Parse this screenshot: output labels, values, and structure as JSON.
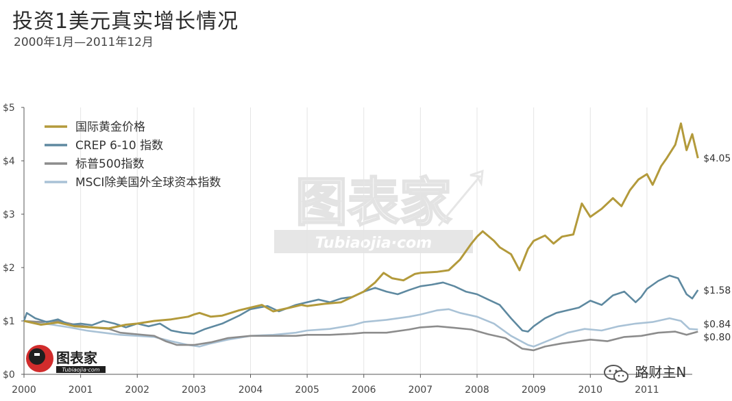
{
  "header": {
    "title": "投资1美元真实增长情况",
    "subtitle": "2000年1月—2011年12月"
  },
  "watermark": {
    "main": "图表家",
    "sub": "Tubiaojia·com",
    "logo_main": "图表家",
    "logo_sub": "Tubiaojia·com"
  },
  "footer": {
    "text": "路财主N",
    "icon": "wechat-icon"
  },
  "chart_data": {
    "type": "line",
    "xlim": [
      2000,
      2011.8
    ],
    "ylim": [
      0,
      5
    ],
    "x_ticks": [
      2000,
      2001,
      2002,
      2003,
      2004,
      2005,
      2006,
      2007,
      2008,
      2009,
      2010,
      2011
    ],
    "x_tick_labels": [
      "2000",
      "2001",
      "2002",
      "2003",
      "2004",
      "2005",
      "2006",
      "2007",
      "2008",
      "2009",
      "2010",
      "2011"
    ],
    "y_ticks": [
      0,
      1,
      2,
      3,
      4,
      5
    ],
    "y_tick_labels": [
      "$0",
      "$1",
      "$2",
      "$3",
      "$4",
      "$5"
    ],
    "grid": "vertical",
    "legend_position": "top-left",
    "series": [
      {
        "name": "国际黄金价格",
        "color": "#b39a3b",
        "end_label": "$4.05",
        "points": [
          [
            2000.0,
            1.0
          ],
          [
            2000.3,
            0.93
          ],
          [
            2000.6,
            0.97
          ],
          [
            2000.9,
            0.9
          ],
          [
            2001.2,
            0.88
          ],
          [
            2001.5,
            0.86
          ],
          [
            2001.8,
            0.93
          ],
          [
            2002.0,
            0.95
          ],
          [
            2002.3,
            1.0
          ],
          [
            2002.6,
            1.03
          ],
          [
            2002.9,
            1.08
          ],
          [
            2003.0,
            1.12
          ],
          [
            2003.1,
            1.15
          ],
          [
            2003.3,
            1.08
          ],
          [
            2003.5,
            1.1
          ],
          [
            2003.8,
            1.2
          ],
          [
            2004.0,
            1.25
          ],
          [
            2004.2,
            1.3
          ],
          [
            2004.4,
            1.18
          ],
          [
            2004.7,
            1.25
          ],
          [
            2004.9,
            1.3
          ],
          [
            2005.0,
            1.28
          ],
          [
            2005.3,
            1.32
          ],
          [
            2005.6,
            1.35
          ],
          [
            2005.9,
            1.5
          ],
          [
            2006.0,
            1.55
          ],
          [
            2006.2,
            1.72
          ],
          [
            2006.35,
            1.9
          ],
          [
            2006.5,
            1.8
          ],
          [
            2006.7,
            1.76
          ],
          [
            2006.9,
            1.88
          ],
          [
            2007.0,
            1.9
          ],
          [
            2007.3,
            1.92
          ],
          [
            2007.5,
            1.95
          ],
          [
            2007.7,
            2.15
          ],
          [
            2007.9,
            2.45
          ],
          [
            2008.0,
            2.58
          ],
          [
            2008.1,
            2.68
          ],
          [
            2008.3,
            2.5
          ],
          [
            2008.4,
            2.38
          ],
          [
            2008.6,
            2.25
          ],
          [
            2008.75,
            1.95
          ],
          [
            2008.9,
            2.35
          ],
          [
            2009.0,
            2.5
          ],
          [
            2009.2,
            2.6
          ],
          [
            2009.35,
            2.45
          ],
          [
            2009.5,
            2.58
          ],
          [
            2009.7,
            2.62
          ],
          [
            2009.85,
            3.2
          ],
          [
            2010.0,
            2.95
          ],
          [
            2010.2,
            3.1
          ],
          [
            2010.4,
            3.3
          ],
          [
            2010.55,
            3.15
          ],
          [
            2010.7,
            3.45
          ],
          [
            2010.85,
            3.65
          ],
          [
            2011.0,
            3.75
          ],
          [
            2011.1,
            3.55
          ],
          [
            2011.25,
            3.9
          ],
          [
            2011.35,
            4.05
          ],
          [
            2011.5,
            4.3
          ],
          [
            2011.6,
            4.7
          ],
          [
            2011.7,
            4.2
          ],
          [
            2011.8,
            4.5
          ],
          [
            2011.9,
            4.05
          ]
        ]
      },
      {
        "name": "CREP 6-10 指数",
        "color": "#5e89a0",
        "end_label": "$1.58",
        "points": [
          [
            2000.0,
            1.0
          ],
          [
            2000.05,
            1.15
          ],
          [
            2000.2,
            1.05
          ],
          [
            2000.4,
            0.98
          ],
          [
            2000.6,
            1.03
          ],
          [
            2000.8,
            0.93
          ],
          [
            2001.0,
            0.95
          ],
          [
            2001.2,
            0.92
          ],
          [
            2001.4,
            1.0
          ],
          [
            2001.6,
            0.95
          ],
          [
            2001.8,
            0.88
          ],
          [
            2002.0,
            0.95
          ],
          [
            2002.2,
            0.9
          ],
          [
            2002.4,
            0.95
          ],
          [
            2002.6,
            0.82
          ],
          [
            2002.8,
            0.78
          ],
          [
            2003.0,
            0.76
          ],
          [
            2003.2,
            0.85
          ],
          [
            2003.5,
            0.95
          ],
          [
            2003.8,
            1.1
          ],
          [
            2004.0,
            1.22
          ],
          [
            2004.3,
            1.28
          ],
          [
            2004.5,
            1.18
          ],
          [
            2004.8,
            1.3
          ],
          [
            2005.0,
            1.35
          ],
          [
            2005.2,
            1.4
          ],
          [
            2005.4,
            1.35
          ],
          [
            2005.6,
            1.42
          ],
          [
            2005.8,
            1.45
          ],
          [
            2006.0,
            1.55
          ],
          [
            2006.2,
            1.62
          ],
          [
            2006.4,
            1.55
          ],
          [
            2006.6,
            1.5
          ],
          [
            2006.8,
            1.58
          ],
          [
            2007.0,
            1.65
          ],
          [
            2007.2,
            1.68
          ],
          [
            2007.4,
            1.72
          ],
          [
            2007.6,
            1.65
          ],
          [
            2007.8,
            1.55
          ],
          [
            2008.0,
            1.5
          ],
          [
            2008.2,
            1.4
          ],
          [
            2008.4,
            1.3
          ],
          [
            2008.6,
            1.05
          ],
          [
            2008.8,
            0.82
          ],
          [
            2008.9,
            0.8
          ],
          [
            2009.0,
            0.9
          ],
          [
            2009.2,
            1.05
          ],
          [
            2009.4,
            1.15
          ],
          [
            2009.6,
            1.2
          ],
          [
            2009.8,
            1.25
          ],
          [
            2010.0,
            1.38
          ],
          [
            2010.2,
            1.3
          ],
          [
            2010.4,
            1.48
          ],
          [
            2010.6,
            1.55
          ],
          [
            2010.8,
            1.35
          ],
          [
            2010.9,
            1.45
          ],
          [
            2011.0,
            1.6
          ],
          [
            2011.2,
            1.75
          ],
          [
            2011.4,
            1.85
          ],
          [
            2011.55,
            1.8
          ],
          [
            2011.7,
            1.5
          ],
          [
            2011.8,
            1.42
          ],
          [
            2011.9,
            1.58
          ]
        ]
      },
      {
        "name": "标普500指数",
        "color": "#8c8c8c",
        "end_label": "$0.80",
        "points": [
          [
            2000.0,
            1.0
          ],
          [
            2000.3,
            0.98
          ],
          [
            2000.6,
            1.0
          ],
          [
            2000.9,
            0.93
          ],
          [
            2001.2,
            0.88
          ],
          [
            2001.5,
            0.85
          ],
          [
            2001.7,
            0.78
          ],
          [
            2002.0,
            0.75
          ],
          [
            2002.3,
            0.72
          ],
          [
            2002.5,
            0.62
          ],
          [
            2002.7,
            0.55
          ],
          [
            2003.0,
            0.55
          ],
          [
            2003.3,
            0.6
          ],
          [
            2003.6,
            0.68
          ],
          [
            2004.0,
            0.72
          ],
          [
            2004.4,
            0.72
          ],
          [
            2004.8,
            0.72
          ],
          [
            2005.0,
            0.74
          ],
          [
            2005.4,
            0.74
          ],
          [
            2005.8,
            0.76
          ],
          [
            2006.0,
            0.78
          ],
          [
            2006.4,
            0.78
          ],
          [
            2006.8,
            0.84
          ],
          [
            2007.0,
            0.88
          ],
          [
            2007.3,
            0.9
          ],
          [
            2007.6,
            0.87
          ],
          [
            2007.9,
            0.84
          ],
          [
            2008.2,
            0.75
          ],
          [
            2008.5,
            0.68
          ],
          [
            2008.8,
            0.48
          ],
          [
            2009.0,
            0.45
          ],
          [
            2009.2,
            0.52
          ],
          [
            2009.5,
            0.58
          ],
          [
            2009.8,
            0.62
          ],
          [
            2010.0,
            0.65
          ],
          [
            2010.3,
            0.62
          ],
          [
            2010.6,
            0.7
          ],
          [
            2010.9,
            0.72
          ],
          [
            2011.2,
            0.78
          ],
          [
            2011.5,
            0.8
          ],
          [
            2011.7,
            0.74
          ],
          [
            2011.9,
            0.8
          ]
        ]
      },
      {
        "name": "MSCI除美国外全球资本指数",
        "color": "#a9c2d6",
        "end_label": "$0.84",
        "points": [
          [
            2000.0,
            1.0
          ],
          [
            2000.2,
            0.97
          ],
          [
            2000.5,
            0.93
          ],
          [
            2000.8,
            0.88
          ],
          [
            2001.1,
            0.82
          ],
          [
            2001.4,
            0.78
          ],
          [
            2001.7,
            0.74
          ],
          [
            2002.0,
            0.72
          ],
          [
            2002.3,
            0.7
          ],
          [
            2002.6,
            0.62
          ],
          [
            2002.9,
            0.55
          ],
          [
            2003.1,
            0.52
          ],
          [
            2003.3,
            0.58
          ],
          [
            2003.6,
            0.65
          ],
          [
            2004.0,
            0.72
          ],
          [
            2004.4,
            0.74
          ],
          [
            2004.8,
            0.78
          ],
          [
            2005.0,
            0.82
          ],
          [
            2005.4,
            0.85
          ],
          [
            2005.8,
            0.92
          ],
          [
            2006.0,
            0.98
          ],
          [
            2006.4,
            1.02
          ],
          [
            2006.8,
            1.08
          ],
          [
            2007.0,
            1.12
          ],
          [
            2007.3,
            1.2
          ],
          [
            2007.5,
            1.22
          ],
          [
            2007.7,
            1.15
          ],
          [
            2008.0,
            1.08
          ],
          [
            2008.3,
            0.95
          ],
          [
            2008.6,
            0.72
          ],
          [
            2008.9,
            0.55
          ],
          [
            2009.0,
            0.52
          ],
          [
            2009.3,
            0.65
          ],
          [
            2009.6,
            0.78
          ],
          [
            2009.9,
            0.85
          ],
          [
            2010.2,
            0.82
          ],
          [
            2010.5,
            0.9
          ],
          [
            2010.8,
            0.95
          ],
          [
            2011.1,
            0.98
          ],
          [
            2011.4,
            1.05
          ],
          [
            2011.6,
            1.0
          ],
          [
            2011.75,
            0.85
          ],
          [
            2011.9,
            0.84
          ]
        ]
      }
    ]
  }
}
